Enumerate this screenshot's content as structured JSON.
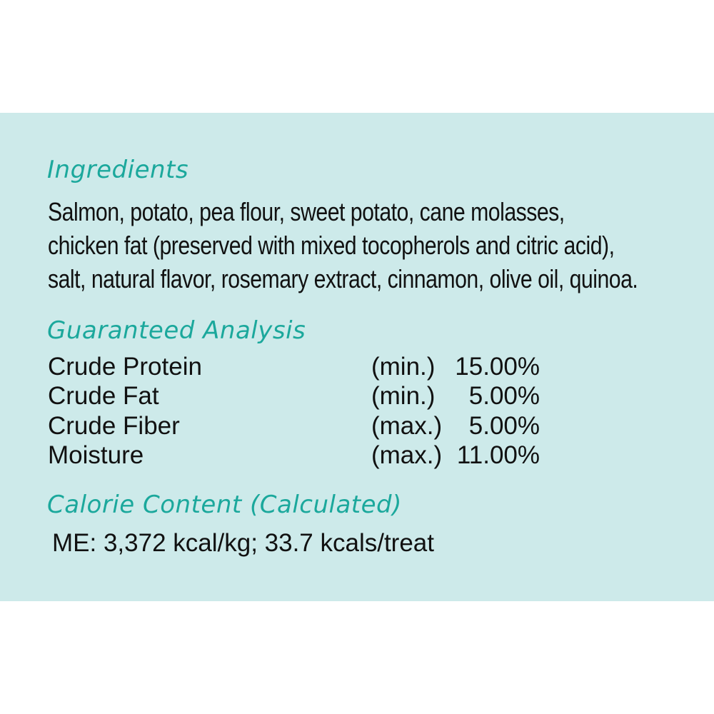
{
  "ingredients": {
    "title": "Ingredients",
    "lines": [
      "Salmon, potato, pea flour, sweet potato, cane molasses,",
      "chicken fat (preserved with mixed tocopherols and citric acid),",
      "salt, natural flavor, rosemary extract, cinnamon, olive oil, quinoa."
    ]
  },
  "analysis": {
    "title": "Guaranteed Analysis",
    "rows": [
      {
        "label": "Crude Protein",
        "qualifier": "(min.)",
        "value": "15.00%"
      },
      {
        "label": "Crude Fat",
        "qualifier": "(min.)",
        "value": "5.00%"
      },
      {
        "label": "Crude Fiber",
        "qualifier": "(max.)",
        "value": "5.00%"
      },
      {
        "label": "Moisture",
        "qualifier": "(max.)",
        "value": "11.00%"
      }
    ]
  },
  "calorie": {
    "title": "Calorie Content (Calculated)",
    "text": "ME: 3,372 kcal/kg; 33.7 kcals/treat"
  },
  "colors": {
    "panel": "#cdeaea",
    "heading": "#1ba89c",
    "text": "#111111"
  }
}
